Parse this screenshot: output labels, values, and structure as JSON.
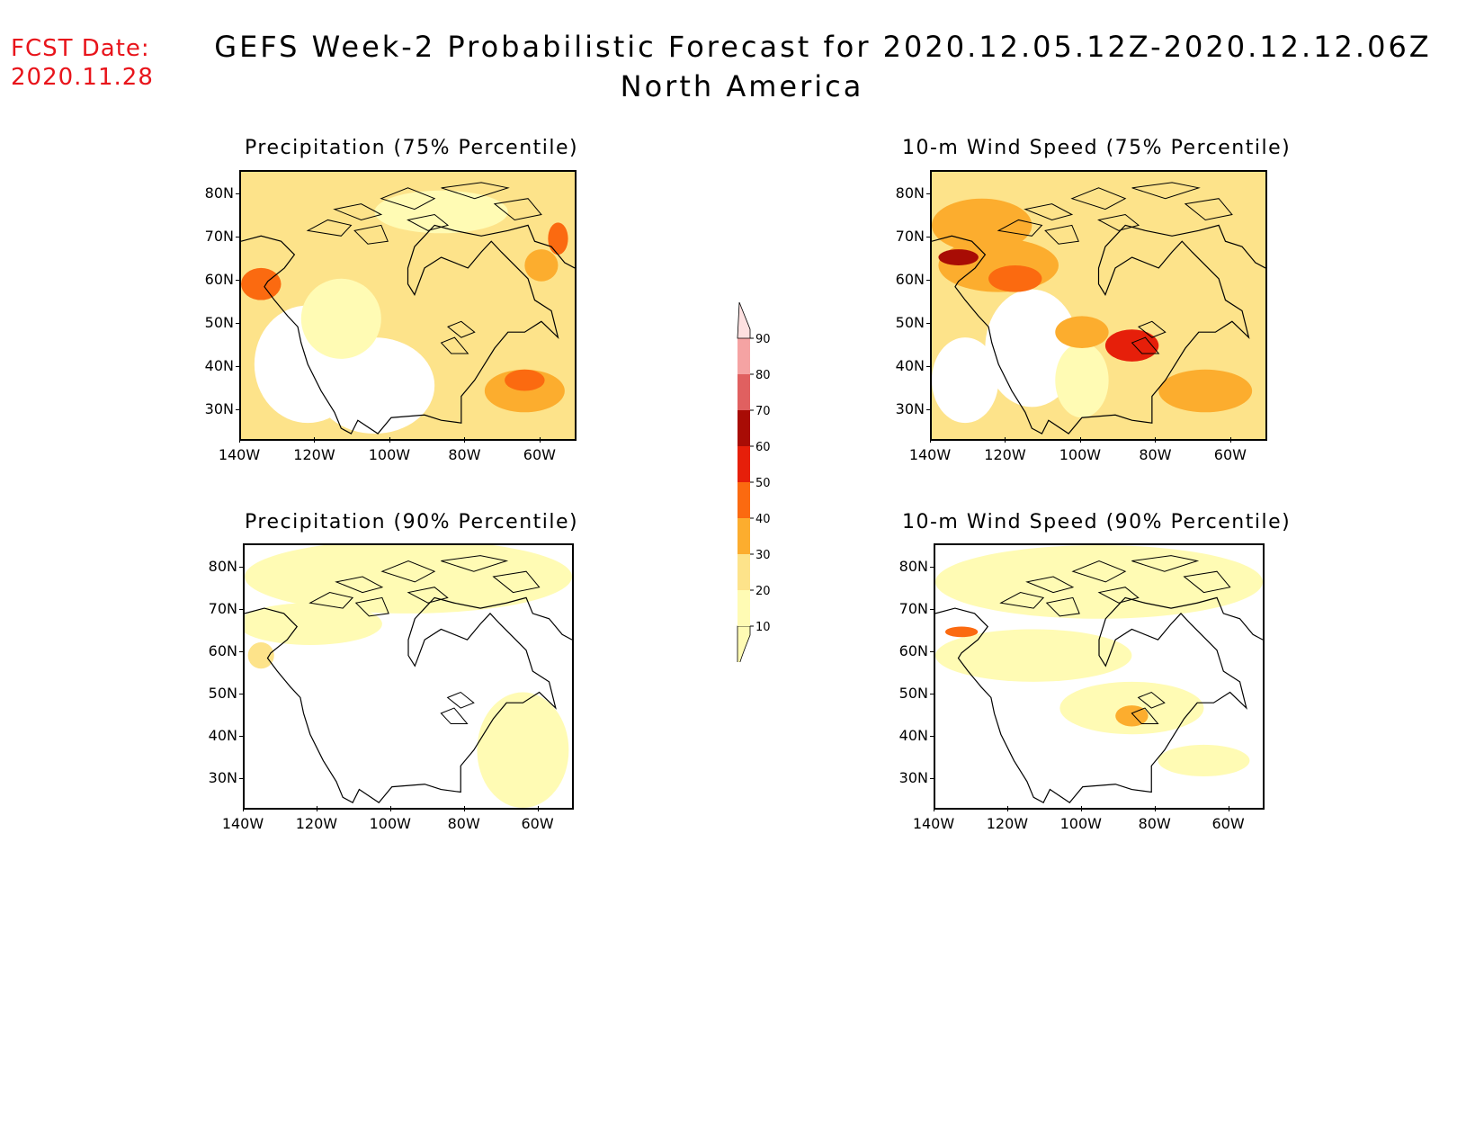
{
  "header": {
    "fcst_label": "FCST Date:",
    "fcst_date": "2020.11.28",
    "title_line1": "GEFS Week-2 Probabilistic Forecast for 2020.12.05.12Z-2020.12.12.06Z",
    "title_line2": "North America"
  },
  "panels": [
    {
      "id": "precip75",
      "title": "Precipitation (75% Percentile)"
    },
    {
      "id": "wind75",
      "title": "10-m Wind Speed (75% Percentile)"
    },
    {
      "id": "precip90",
      "title": "Precipitation (90% Percentile)"
    },
    {
      "id": "wind90",
      "title": "10-m Wind Speed (90% Percentile)"
    }
  ],
  "axes": {
    "lat_labels": [
      "80N",
      "70N",
      "60N",
      "50N",
      "40N",
      "30N"
    ],
    "lon_labels": [
      "140W",
      "120W",
      "100W",
      "80W",
      "60W"
    ]
  },
  "legend": {
    "levels": [
      "10",
      "20",
      "30",
      "40",
      "50",
      "60",
      "70",
      "80",
      "90"
    ],
    "colors": [
      "#fffbb4",
      "#fde38a",
      "#fcad2e",
      "#fb6a10",
      "#e61f0a",
      "#a80c05",
      "#e06060",
      "#f5a3a3",
      "#fde0e0"
    ]
  }
}
